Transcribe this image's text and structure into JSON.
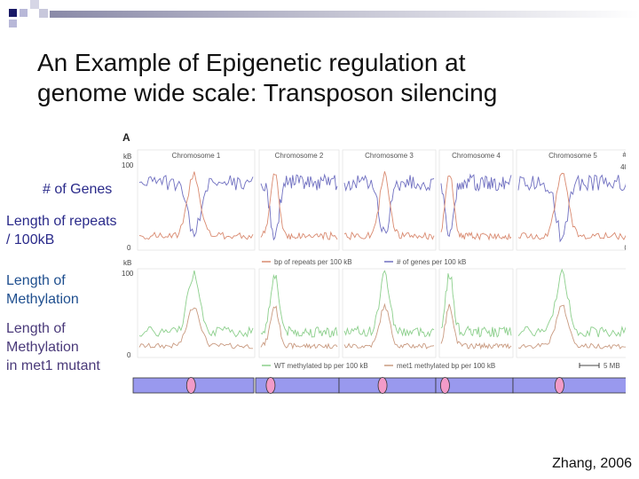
{
  "slide": {
    "title_line1": "An Example of Epigenetic regulation at",
    "title_line2": "genome wide scale: Transposon silencing",
    "citation": "Zhang, 2006"
  },
  "labels": {
    "genes": "# of Genes",
    "repeats_1": "Length of repeats",
    "repeats_2": "/ 100kB",
    "meth_1": "Length of",
    "meth_2": "Methylation",
    "mut_1": "Length of",
    "mut_2": "Methylation",
    "mut_3": "in met1 mutant"
  },
  "figure": {
    "panel_letter": "A",
    "top_unit_left": "kB",
    "top_unit_right": "#",
    "top_y_left": [
      "100",
      "0"
    ],
    "top_y_right": [
      "40",
      "0"
    ],
    "bottom_unit": "kB",
    "bottom_y": [
      "100",
      "0"
    ],
    "chromosomes": [
      "Chromosome 1",
      "Chromosome 2",
      "Chromosome 3",
      "Chromosome 4",
      "Chromosome 5"
    ],
    "legend_top": [
      "bp of repeats per 100 kB",
      "# of genes per 100 kB"
    ],
    "legend_bottom": [
      "WT methylated bp per 100 kB",
      "met1 methylated bp per 100 kB"
    ],
    "scale_label": "5 MB",
    "colors": {
      "genes": "#6f6fc0",
      "repeats": "#d98a70",
      "wt_methylation": "#8ccf8c",
      "met1_methylation": "#c99a80",
      "chromosome_bar": "#9999ee",
      "centromere": "#f29bc8"
    }
  }
}
